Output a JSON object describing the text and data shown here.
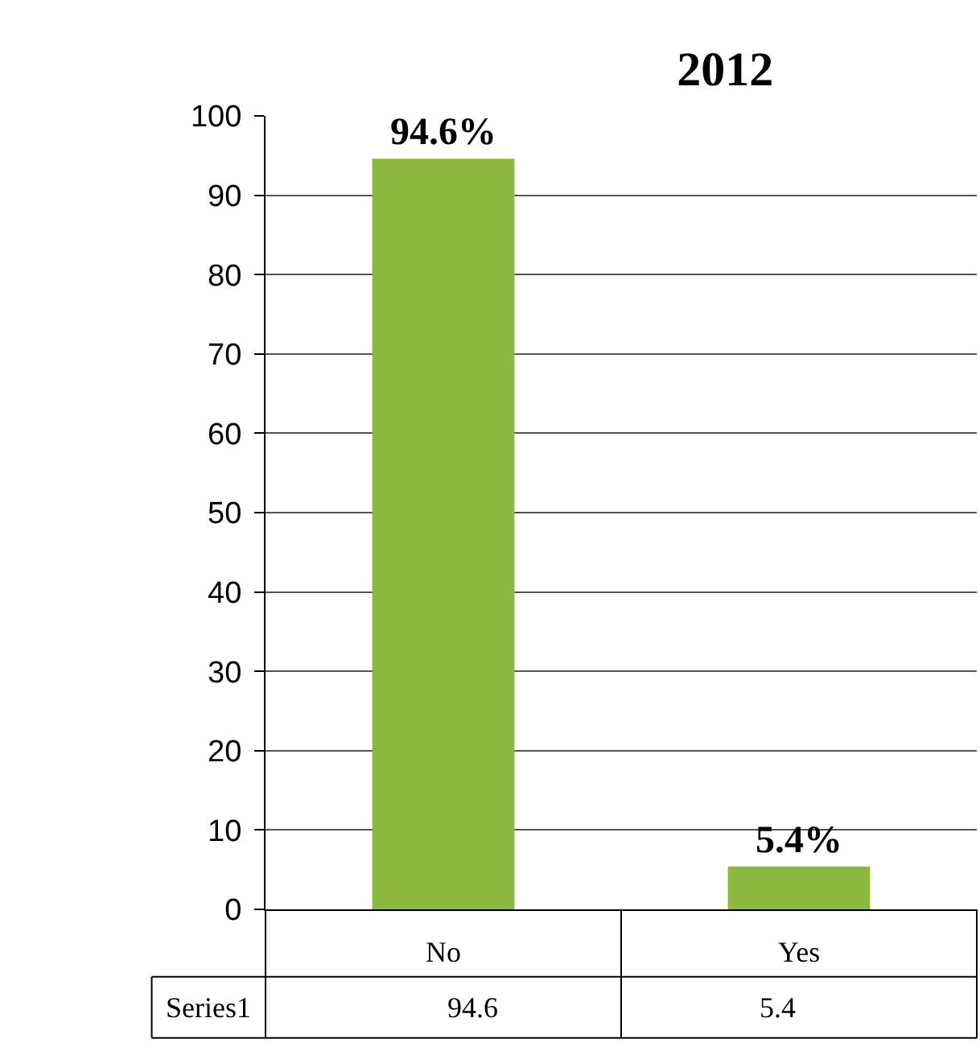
{
  "chart_data": {
    "type": "bar",
    "title": "2012",
    "categories": [
      "No",
      "Yes"
    ],
    "series": [
      {
        "name": "Series1",
        "color": "#8cb840",
        "values": [
          94.6,
          5.4
        ],
        "value_labels": [
          "94.6%",
          "5.4%"
        ]
      }
    ],
    "annotations": [
      "94.6",
      "5.4"
    ],
    "ylim": [
      0,
      100
    ],
    "yticks": [
      0,
      10,
      20,
      30,
      40,
      50,
      60,
      70,
      80,
      90,
      100
    ],
    "grid": "y",
    "legend": false,
    "data_labels": true
  }
}
